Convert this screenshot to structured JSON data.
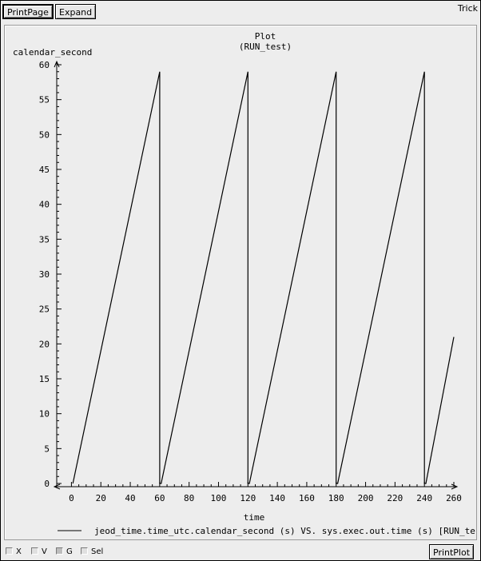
{
  "toolbar": {
    "print_page": "PrintPage",
    "expand": "Expand",
    "app_name": "Trick"
  },
  "plot": {
    "title": "Plot",
    "subtitle": "(RUN_test)",
    "ylabel": "calendar_second",
    "xlabel": "time",
    "legend": "jeod_time.time_utc.calendar_second (s) VS. sys.exec.out.time (s) [RUN_test]"
  },
  "chart_data": {
    "type": "line",
    "title": "Plot",
    "subtitle": "(RUN_test)",
    "xlabel": "time",
    "ylabel": "calendar_second",
    "xlim": [
      -10,
      260
    ],
    "ylim": [
      0,
      60
    ],
    "xticks": [
      0,
      20,
      40,
      60,
      80,
      100,
      120,
      140,
      160,
      180,
      200,
      220,
      240,
      260
    ],
    "yticks": [
      0,
      5,
      10,
      15,
      20,
      25,
      30,
      35,
      40,
      45,
      50,
      55,
      60
    ],
    "grid": false,
    "legend_position": "bottom",
    "series": [
      {
        "name": "jeod_time.time_utc.calendar_second (s) VS. sys.exec.out.time (s) [RUN_test]",
        "x": [
          1,
          60,
          60,
          61,
          120,
          120,
          121,
          180,
          180,
          181,
          240,
          240,
          241,
          260
        ],
        "y": [
          0,
          59,
          0,
          0,
          59,
          0,
          0,
          59,
          0,
          0,
          59,
          0,
          0,
          21
        ]
      }
    ]
  },
  "bottom": {
    "x": "X",
    "v": "V",
    "g": "G",
    "sel": "Sel",
    "print_plot": "PrintPlot",
    "g_checked": true
  }
}
